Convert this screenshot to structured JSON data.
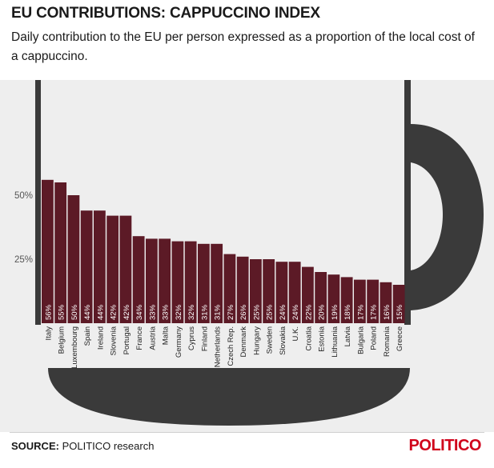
{
  "title": "EU CONTRIBUTIONS: CAPPUCCINO INDEX",
  "subtitle": "Daily contribution to the EU per person expressed as a proportion of the local cost of a cappuccino.",
  "source_label": "SOURCE:",
  "source_text": "POLITICO research",
  "brand": "POLITICO",
  "colors": {
    "bar": "#5c1a26",
    "cup": "#3a3a3a",
    "background": "#eeeeee",
    "brand": "#d0021b"
  },
  "chart_data": {
    "type": "bar",
    "title": "EU CONTRIBUTIONS: CAPPUCCINO INDEX",
    "xlabel": "",
    "ylabel": "",
    "ylim": [
      0,
      60
    ],
    "yticks": [
      {
        "value": 25,
        "label": "25%"
      },
      {
        "value": 50,
        "label": "50%"
      }
    ],
    "categories": [
      "Italy",
      "Belgium",
      "Luxembourg",
      "Spain",
      "Ireland",
      "Slovenia",
      "Portugal",
      "France",
      "Austria",
      "Malta",
      "Germany",
      "Cyprus",
      "Finland",
      "Netherlands",
      "Czech Rep.",
      "Denmark",
      "Hungary",
      "Sweden",
      "Slovakia",
      "U.K.",
      "Croatia",
      "Estonia",
      "Lithuania",
      "Latvia",
      "Bulgaria",
      "Poland",
      "Romania",
      "Greece"
    ],
    "values": [
      56,
      55,
      50,
      44,
      44,
      42,
      42,
      34,
      33,
      33,
      32,
      32,
      31,
      31,
      27,
      26,
      25,
      25,
      24,
      24,
      22,
      20,
      19,
      18,
      17,
      17,
      16,
      15
    ],
    "value_labels": [
      "56%",
      "55%",
      "50%",
      "44%",
      "44%",
      "42%",
      "42%",
      "34%",
      "33%",
      "33%",
      "32%",
      "32%",
      "31%",
      "31%",
      "27%",
      "26%",
      "25%",
      "25%",
      "24%",
      "24%",
      "22%",
      "20%",
      "19%",
      "18%",
      "17%",
      "17%",
      "16%",
      "15%"
    ]
  }
}
